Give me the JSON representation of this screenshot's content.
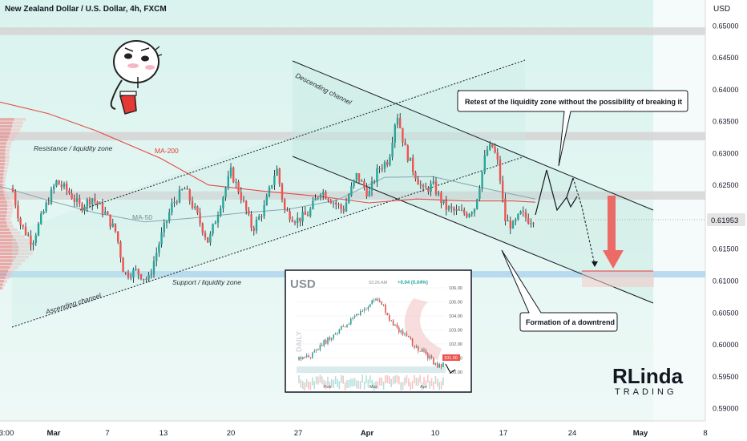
{
  "chart_data": {
    "type": "candlestick",
    "title": "New Zealand Dollar / U.S. Dollar, 4h, FXCM",
    "currency_label": "USD",
    "last_price": "0.61953",
    "ylim": [
      0.588,
      0.654
    ],
    "y_ticks": [
      "0.65000",
      "0.64500",
      "0.64000",
      "0.63500",
      "0.63000",
      "0.62500",
      "0.62000",
      "0.61500",
      "0.61000",
      "0.60500",
      "0.60000",
      "0.59500",
      "0.59000"
    ],
    "x_ticks": [
      "3:00",
      "Mar",
      "7",
      "13",
      "20",
      "27",
      "Apr",
      "10",
      "17",
      "24",
      "May",
      "8"
    ],
    "zones": {
      "top": [
        0.6485,
        0.6497
      ],
      "resistance": [
        0.632,
        0.6333
      ],
      "mid": [
        0.6227,
        0.624
      ],
      "support": [
        0.6105,
        0.6115
      ]
    },
    "ma200": [
      [
        0,
        0.638
      ],
      [
        60,
        0.6362
      ],
      [
        120,
        0.6335
      ],
      [
        200,
        0.6292
      ],
      [
        260,
        0.625
      ],
      [
        330,
        0.624
      ],
      [
        400,
        0.6232
      ],
      [
        460,
        0.6222
      ],
      [
        520,
        0.6228
      ],
      [
        580,
        0.6225
      ],
      [
        640,
        0.6225
      ],
      [
        668,
        0.6223
      ]
    ],
    "ma50": [
      [
        0,
        0.6248
      ],
      [
        60,
        0.6226
      ],
      [
        120,
        0.6206
      ],
      [
        180,
        0.6192
      ],
      [
        240,
        0.6198
      ],
      [
        300,
        0.6206
      ],
      [
        360,
        0.6212
      ],
      [
        420,
        0.6226
      ],
      [
        480,
        0.6262
      ],
      [
        540,
        0.6263
      ],
      [
        600,
        0.6246
      ],
      [
        668,
        0.6228
      ]
    ],
    "price_path": [
      [
        15,
        0.6245
      ],
      [
        25,
        0.619
      ],
      [
        40,
        0.616
      ],
      [
        55,
        0.621
      ],
      [
        70,
        0.6255
      ],
      [
        85,
        0.624
      ],
      [
        100,
        0.6215
      ],
      [
        115,
        0.623
      ],
      [
        130,
        0.6208
      ],
      [
        145,
        0.6175
      ],
      [
        155,
        0.611
      ],
      [
        170,
        0.6115
      ],
      [
        185,
        0.61
      ],
      [
        200,
        0.6165
      ],
      [
        215,
        0.622
      ],
      [
        230,
        0.6245
      ],
      [
        245,
        0.6205
      ],
      [
        260,
        0.616
      ],
      [
        275,
        0.622
      ],
      [
        288,
        0.627
      ],
      [
        300,
        0.6235
      ],
      [
        315,
        0.618
      ],
      [
        330,
        0.6215
      ],
      [
        345,
        0.6278
      ],
      [
        355,
        0.621
      ],
      [
        370,
        0.6195
      ],
      [
        385,
        0.6205
      ],
      [
        400,
        0.6242
      ],
      [
        415,
        0.6225
      ],
      [
        428,
        0.621
      ],
      [
        445,
        0.6265
      ],
      [
        460,
        0.6235
      ],
      [
        472,
        0.6275
      ],
      [
        485,
        0.629
      ],
      [
        495,
        0.6365
      ],
      [
        505,
        0.6308
      ],
      [
        515,
        0.6275
      ],
      [
        528,
        0.624
      ],
      [
        540,
        0.625
      ],
      [
        555,
        0.6215
      ],
      [
        568,
        0.6208
      ],
      [
        582,
        0.6205
      ],
      [
        592,
        0.6215
      ],
      [
        600,
        0.626
      ],
      [
        607,
        0.6305
      ],
      [
        615,
        0.631
      ],
      [
        622,
        0.628
      ],
      [
        630,
        0.6195
      ],
      [
        640,
        0.6185
      ],
      [
        650,
        0.6205
      ],
      [
        660,
        0.6195
      ],
      [
        668,
        0.6198
      ]
    ],
    "volume_profile": [
      0.54,
      0.48,
      0.46,
      0.42,
      0.38,
      0.33,
      0.29,
      0.24,
      0.22,
      0.2,
      0.19,
      0.2,
      0.19,
      0.18,
      0.16,
      0.15,
      0.13,
      0.12,
      0.11,
      0.11,
      0.12,
      0.14,
      0.16,
      0.2,
      0.26,
      0.28,
      0.27,
      0.26,
      0.24,
      0.22,
      0.25,
      0.28,
      0.36,
      0.43,
      0.51,
      0.6,
      0.66,
      0.7,
      0.7,
      0.68,
      0.6,
      0.52,
      0.45,
      0.38,
      0.31,
      0.25,
      0.2,
      0.15,
      0.1,
      0.07
    ],
    "annotations": {
      "resistance_zone": "Resistance / liquidity zone",
      "support_zone": "Support / liquidity zone",
      "ma200": "MA-200",
      "ma50": "MA-50",
      "ascending_channel": "Ascending channel",
      "descending_channel": "Descending channel",
      "retest_callout": "Retest of the liquidity zone without the possibility of breaking it",
      "downtrend_callout": "Formation of a downtrend"
    },
    "colors": {
      "bull": "#26a69a",
      "bear": "#ef5350",
      "ma200": "#e53935",
      "ma50": "#7a9ea6",
      "zone_gray": "#d6d6d6",
      "zone_blue": "#b3d6ee",
      "chart_bg": "#d3f0ea",
      "price_tag": "#e4e4e4"
    }
  },
  "inset": {
    "title": "USD",
    "time": "03:26 AM",
    "change": "+0.04 (0.04%)",
    "side_label": "DAILY",
    "y_ticks": [
      "106.00",
      "105.00",
      "104.00",
      "103.00",
      "102.00",
      "101.00",
      "100.00"
    ],
    "x_ticks": [
      "Feb",
      "Mar",
      "Apr"
    ],
    "price_tag": "101.00"
  },
  "watermark": {
    "logo_text": "RLinda",
    "sub_text": "TRADING"
  }
}
